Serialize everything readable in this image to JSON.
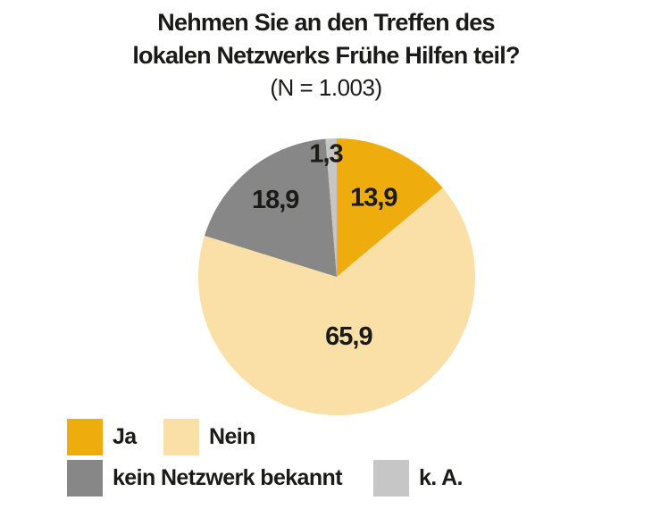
{
  "header": {
    "line1": "Nehmen Sie an den Treffen des",
    "line2": "lokalen Netzwerks Frühe Hilfen teil?",
    "line3": "(N = 1.003)"
  },
  "colors": {
    "background": "#ffffff",
    "text": "#1a1a18"
  },
  "chart_data": {
    "type": "pie",
    "title": "Nehmen Sie an den Treffen des lokalen Netzwerks Frühe Hilfen teil?",
    "subtitle": "(N = 1.003)",
    "sample_size_label": "N = 1.003",
    "unit": "percent",
    "direction": "clockwise",
    "start_angle_deg": 0,
    "legend_position": "bottom-left",
    "slices": [
      {
        "label": "Ja",
        "value": 13.9,
        "display": "13,9",
        "color": "#efac0d",
        "label_r": 0.63
      },
      {
        "label": "Nein",
        "value": 65.9,
        "display": "65,9",
        "color": "#fadfa6",
        "label_r": 0.44
      },
      {
        "label": "kein Netzwerk bekannt",
        "value": 18.9,
        "display": "18,9",
        "color": "#878787",
        "label_r": 0.71
      },
      {
        "label": "k. A.",
        "value": 1.3,
        "display": "1,3",
        "color": "#c6c6c6",
        "label_r": 0.89,
        "label_angle": 355
      }
    ]
  }
}
